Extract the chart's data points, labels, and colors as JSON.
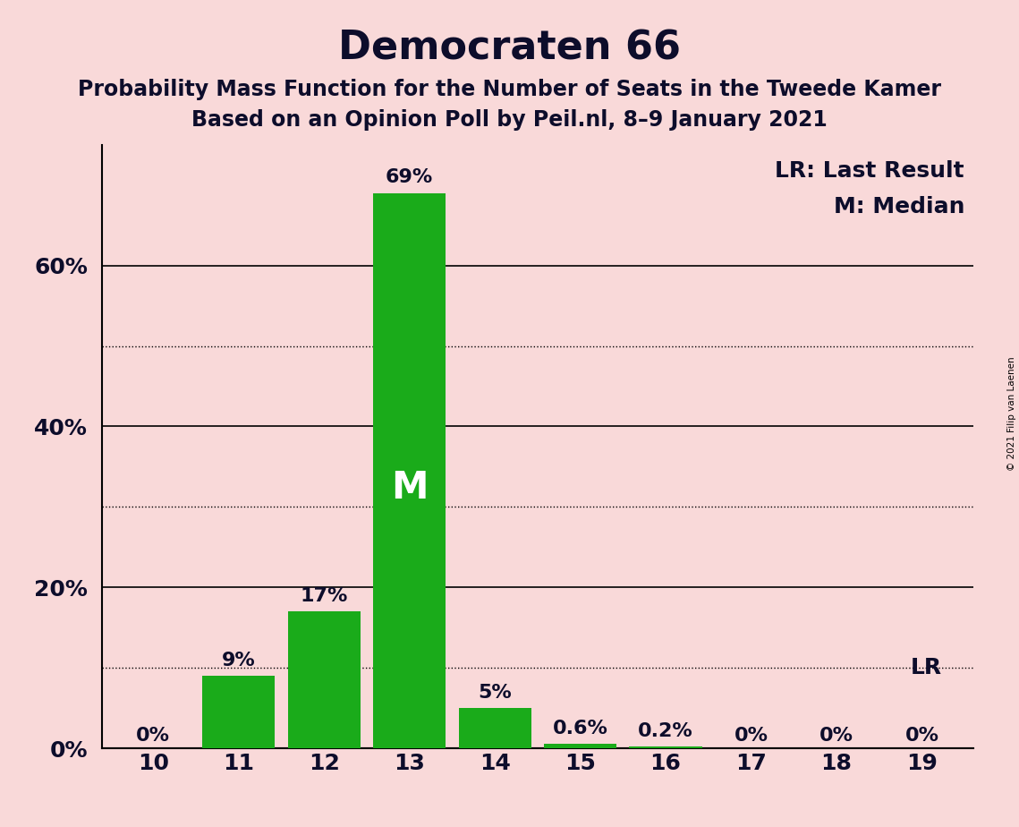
{
  "title": "Democraten 66",
  "subtitle1": "Probability Mass Function for the Number of Seats in the Tweede Kamer",
  "subtitle2": "Based on an Opinion Poll by Peil.nl, 8–9 January 2021",
  "copyright": "© 2021 Filip van Laenen",
  "seats": [
    10,
    11,
    12,
    13,
    14,
    15,
    16,
    17,
    18,
    19
  ],
  "probabilities": [
    0.0,
    9.0,
    17.0,
    69.0,
    5.0,
    0.6,
    0.2,
    0.0,
    0.0,
    0.0
  ],
  "bar_labels": [
    "0%",
    "9%",
    "17%",
    "69%",
    "5%",
    "0.6%",
    "0.2%",
    "0%",
    "0%",
    "0%"
  ],
  "bar_color": "#1aab1a",
  "background_color": "#f9d9d9",
  "median_seat": 13,
  "last_result_seat": 19,
  "median_label": "M",
  "lr_label": "LR",
  "legend_lr": "LR: Last Result",
  "legend_m": "M: Median",
  "yticks": [
    0,
    20,
    40,
    60
  ],
  "ytick_labels": [
    "0%",
    "20%",
    "40%",
    "60%"
  ],
  "dotted_yticks": [
    10,
    30,
    50
  ],
  "ylim": [
    0,
    75
  ],
  "title_fontsize": 32,
  "subtitle_fontsize": 17,
  "label_fontsize": 16,
  "tick_fontsize": 18,
  "legend_fontsize": 18,
  "bar_label_fontsize": 16,
  "text_color": "#0d0d2b"
}
